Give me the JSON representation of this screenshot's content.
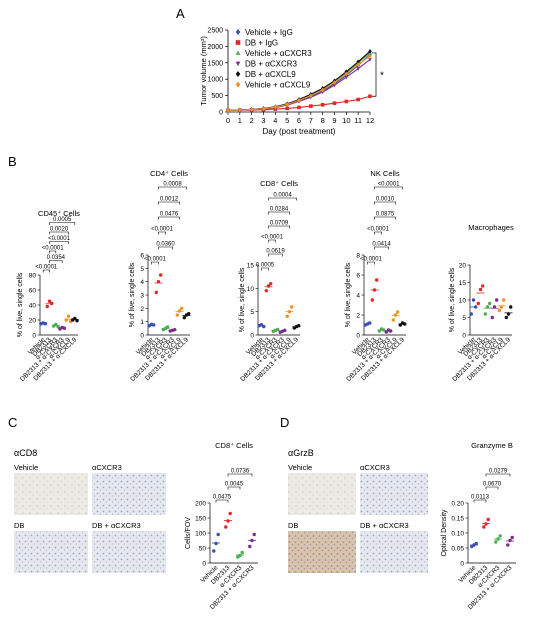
{
  "panels": {
    "A": "A",
    "B": "B",
    "C": "C",
    "D": "D"
  },
  "sig_star": "*",
  "chart_data": [
    {
      "panel": "A",
      "type": "line",
      "title": "",
      "xlabel": "Day (post treatment)",
      "ylabel": "Tumor volume (mm³)",
      "xlim": [
        0,
        12
      ],
      "ylim": [
        0,
        2500
      ],
      "x_ticks": [
        "0",
        "1",
        "2",
        "3",
        "4",
        "5",
        "6",
        "7",
        "8",
        "9",
        "10",
        "11",
        "12"
      ],
      "y_ticks": [
        "0",
        "500",
        "1000",
        "1500",
        "2000",
        "2500"
      ],
      "legend_position": "top-left",
      "series": [
        {
          "name": "Vehicle + IgG",
          "color": "#3a4fb5",
          "marker": "diamond",
          "x": [
            0,
            1,
            2,
            3,
            4,
            5,
            6,
            7,
            8,
            9,
            10,
            11,
            12
          ],
          "values": [
            50,
            60,
            75,
            95,
            140,
            220,
            340,
            480,
            640,
            860,
            1120,
            1420,
            1750
          ]
        },
        {
          "name": "DB + IgG",
          "color": "#e02828",
          "marker": "square",
          "x": [
            0,
            1,
            2,
            3,
            4,
            5,
            6,
            7,
            8,
            9,
            10,
            11,
            12
          ],
          "values": [
            50,
            55,
            60,
            70,
            90,
            110,
            140,
            180,
            220,
            270,
            320,
            380,
            480
          ]
        },
        {
          "name": "Vehicle + αCXCR3",
          "color": "#4caf50",
          "marker": "triangle",
          "x": [
            0,
            1,
            2,
            3,
            4,
            5,
            6,
            7,
            8,
            9,
            10,
            11,
            12
          ],
          "values": [
            50,
            60,
            80,
            105,
            155,
            240,
            370,
            520,
            700,
            930,
            1200,
            1500,
            1800
          ]
        },
        {
          "name": "DB + αCXCR3",
          "color": "#7b2d8e",
          "marker": "triangle-down",
          "x": [
            0,
            1,
            2,
            3,
            4,
            5,
            6,
            7,
            8,
            9,
            10,
            11,
            12
          ],
          "values": [
            50,
            58,
            72,
            92,
            135,
            210,
            320,
            450,
            610,
            820,
            1060,
            1320,
            1600
          ]
        },
        {
          "name": "DB + αCXCL9",
          "color": "#111111",
          "marker": "diamond",
          "x": [
            0,
            1,
            2,
            3,
            4,
            5,
            6,
            7,
            8,
            9,
            10,
            11,
            12
          ],
          "values": [
            50,
            62,
            82,
            110,
            160,
            250,
            380,
            540,
            720,
            950,
            1230,
            1530,
            1850
          ]
        },
        {
          "name": "Vehicle + αCXCL9",
          "color": "#f0922b",
          "marker": "diamond",
          "x": [
            0,
            1,
            2,
            3,
            4,
            5,
            6,
            7,
            8,
            9,
            10,
            11,
            12
          ],
          "values": [
            50,
            60,
            78,
            100,
            148,
            230,
            355,
            500,
            670,
            900,
            1160,
            1450,
            1700
          ]
        }
      ]
    },
    {
      "panel": "B",
      "type": "scatter",
      "title": "CD45⁺ Cells",
      "ylabel": "% of live, single cells",
      "ylim": [
        0,
        80
      ],
      "y_ticks": [
        "0",
        "20",
        "40",
        "60",
        "80"
      ],
      "categories": [
        "Vehicle",
        "DB2313",
        "α-CXCR3",
        "DB2313 + α-CXCR3",
        "α-CXCL9",
        "DB2313 + α-CXCL9"
      ],
      "colors": [
        "#3a4fb5",
        "#e02828",
        "#4caf50",
        "#7b2d8e",
        "#f0922b",
        "#111111"
      ],
      "points": [
        [
          15,
          16,
          15
        ],
        [
          38,
          45,
          42
        ],
        [
          12,
          14,
          11
        ],
        [
          8,
          10,
          9
        ],
        [
          20,
          25,
          18
        ],
        [
          20,
          22,
          19
        ]
      ],
      "pvalues": [
        "<0.0001",
        "0.0354",
        "<0.0001",
        "<0.0001",
        "0.0020",
        "0.0005"
      ]
    },
    {
      "panel": "B",
      "type": "scatter",
      "title": "CD4⁺ Cells",
      "ylabel": "% of live, single cells",
      "ylim": [
        0,
        6
      ],
      "y_ticks": [
        "0",
        "1",
        "2",
        "3",
        "4",
        "5",
        "6"
      ],
      "categories": [
        "Vehicle",
        "DB2313",
        "α-CXCR3",
        "DB2313 + α-CXCR3",
        "α-CXCL9",
        "DB2313 + α-CXCL9"
      ],
      "colors": [
        "#3a4fb5",
        "#e02828",
        "#4caf50",
        "#7b2d8e",
        "#f0922b",
        "#111111"
      ],
      "points": [
        [
          0.7,
          0.8,
          0.75
        ],
        [
          3.2,
          4.0,
          4.5
        ],
        [
          0.4,
          0.5,
          0.6
        ],
        [
          0.3,
          0.35,
          0.4
        ],
        [
          1.5,
          1.8,
          2.0
        ],
        [
          1.3,
          1.5,
          1.6
        ]
      ],
      "pvalues": [
        "<0.0001",
        "0.0360",
        "<0.0001",
        "0.0476",
        "0.0012",
        "0.0008"
      ]
    },
    {
      "panel": "B",
      "type": "scatter",
      "title": "CD8⁺ Cells",
      "ylabel": "% of live, single cells",
      "ylim": [
        0,
        15
      ],
      "y_ticks": [
        "0",
        "5",
        "10",
        "15"
      ],
      "categories": [
        "Vehicle",
        "DB2313",
        "α-CXCR3",
        "DB2313 + α-CXCR3",
        "α-CXCL9",
        "DB2313 + α-CXCL9"
      ],
      "colors": [
        "#3a4fb5",
        "#e02828",
        "#4caf50",
        "#7b2d8e",
        "#f0922b",
        "#111111"
      ],
      "points": [
        [
          2.0,
          2.2,
          1.8
        ],
        [
          9.5,
          10.5,
          11.0
        ],
        [
          0.8,
          1.0,
          1.2
        ],
        [
          0.6,
          0.8,
          1.0
        ],
        [
          4.0,
          5.0,
          6.0
        ],
        [
          1.5,
          1.8,
          2.0
        ]
      ],
      "pvalues": [
        "0.0005",
        "0.0619",
        "<0.0001",
        "0.0709",
        "0.0284",
        "0.0004"
      ]
    },
    {
      "panel": "B",
      "type": "scatter",
      "title": "NK Cells",
      "ylabel": "% of live, single cells",
      "ylim": [
        0,
        8
      ],
      "y_ticks": [
        "0",
        "2",
        "4",
        "6",
        "8"
      ],
      "categories": [
        "Vehicle",
        "DB2313",
        "α-CXCR3",
        "DB2313 + α-CXCR3",
        "α-CXCL9",
        "DB2313 + α-CXCL9"
      ],
      "colors": [
        "#3a4fb5",
        "#e02828",
        "#4caf50",
        "#7b2d8e",
        "#f0922b",
        "#111111"
      ],
      "points": [
        [
          1.0,
          1.1,
          1.2
        ],
        [
          3.5,
          4.5,
          5.5
        ],
        [
          0.4,
          0.6,
          0.5
        ],
        [
          0.3,
          0.5,
          0.4
        ],
        [
          1.5,
          2.0,
          2.3
        ],
        [
          1.0,
          1.2,
          1.1
        ]
      ],
      "pvalues": [
        "<0.0001",
        "0.0414",
        "<0.0001",
        "0.0875",
        "0.0010",
        "<0.0001"
      ]
    },
    {
      "panel": "B",
      "type": "scatter",
      "title": "Macrophages",
      "ylabel": "% of live, single cells",
      "ylim": [
        0,
        20
      ],
      "y_ticks": [
        "0",
        "5",
        "10",
        "15",
        "20"
      ],
      "categories": [
        "Vehicle",
        "DB2313",
        "α-CXCR3",
        "DB2313 + α-CXCR3",
        "α-CXCL9",
        "DB2313 + α-CXCL9"
      ],
      "colors": [
        "#3a4fb5",
        "#e02828",
        "#4caf50",
        "#7b2d8e",
        "#f0922b",
        "#111111"
      ],
      "points": [
        [
          6,
          10,
          8
        ],
        [
          9,
          13,
          14
        ],
        [
          6,
          8,
          9
        ],
        [
          5,
          8,
          10
        ],
        [
          7,
          8,
          10
        ],
        [
          5,
          6,
          8
        ]
      ],
      "pvalues": []
    },
    {
      "panel": "C",
      "type": "scatter",
      "title": "CD8⁺ Cells",
      "ylabel": "Cells/FOV",
      "ylim": [
        0,
        200
      ],
      "y_ticks": [
        "0",
        "50",
        "100",
        "150",
        "200"
      ],
      "categories": [
        "Vehicle",
        "DB2313",
        "α-CXCR3",
        "DB2313 + α-CXCR3"
      ],
      "colors": [
        "#3a4fb5",
        "#e02828",
        "#4caf50",
        "#7b2d8e"
      ],
      "points": [
        [
          40,
          65,
          95
        ],
        [
          120,
          140,
          165
        ],
        [
          20,
          25,
          35
        ],
        [
          55,
          75,
          95
        ]
      ],
      "pvalues": [
        "0.0475",
        "0.0045",
        "0.0736"
      ]
    },
    {
      "panel": "D",
      "type": "scatter",
      "title": "Granzyme B",
      "ylabel": "Optical Density",
      "ylim": [
        0,
        0.2
      ],
      "y_ticks": [
        "0",
        "0.05",
        "0.10",
        "0.15",
        "0.20"
      ],
      "categories": [
        "Vehicle",
        "DB2313",
        "α-CXCR3",
        "DB2313 + α-CXCR3"
      ],
      "colors": [
        "#3a4fb5",
        "#e02828",
        "#4caf50",
        "#7b2d8e"
      ],
      "points": [
        [
          0.055,
          0.06,
          0.065
        ],
        [
          0.12,
          0.13,
          0.145
        ],
        [
          0.07,
          0.08,
          0.09
        ],
        [
          0.06,
          0.075,
          0.085
        ]
      ],
      "pvalues": [
        "0.0113",
        "0.0670",
        "0.0279"
      ]
    }
  ],
  "images_C": {
    "label": "αCD8",
    "tiles": [
      "Vehicle",
      "αCXCR3",
      "DB",
      "DB + αCXCR3"
    ]
  },
  "images_D": {
    "label": "αGrzB",
    "tiles": [
      "Vehicle",
      "αCXCR3",
      "DB",
      "DB + αCXCR3"
    ]
  }
}
